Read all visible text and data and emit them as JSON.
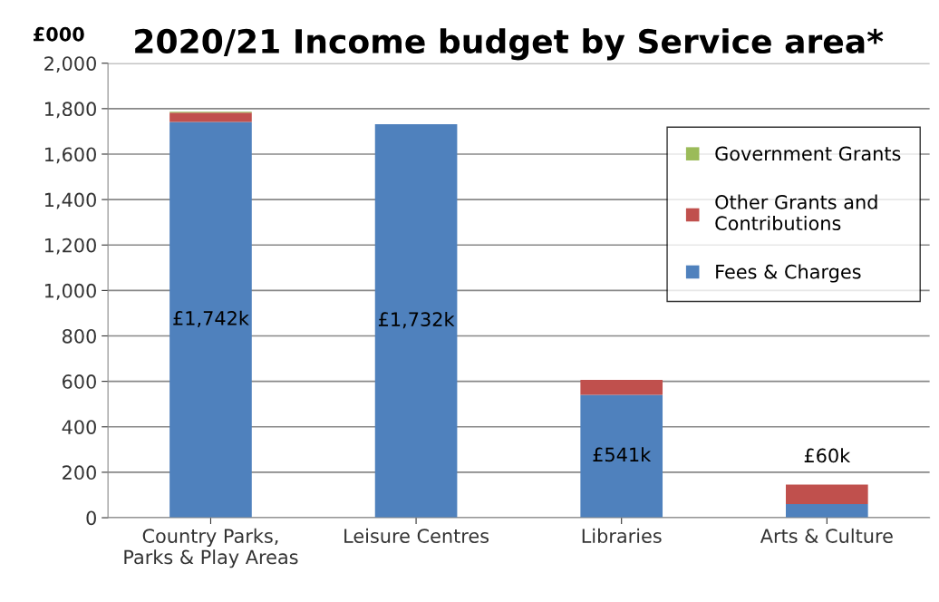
{
  "chart_data": {
    "type": "bar",
    "title": "2020/21 Income budget by Service area*",
    "ylabel": "£000",
    "stacked": true,
    "categories": [
      "Country Parks,\nParks & Play Areas",
      "Leisure Centres",
      "Libraries",
      "Arts & Culture"
    ],
    "series": [
      {
        "name": "Fees & Charges",
        "color": "#4f81bd",
        "values": [
          1742,
          1732,
          541,
          60
        ],
        "value_labels": [
          "£1,742k",
          "£1,732k",
          "£541k",
          "£60k"
        ]
      },
      {
        "name": "Other Grants and\nContributions",
        "color": "#c0504d",
        "values": [
          40,
          0,
          66,
          86
        ]
      },
      {
        "name": "Government Grants",
        "color": "#9bbb59",
        "values": [
          4,
          0,
          0,
          0
        ]
      }
    ],
    "ylim": [
      0,
      2000
    ],
    "yticks": [
      0,
      200,
      400,
      600,
      800,
      {
        "value": 1000,
        "label": "1,000"
      },
      {
        "value": 1200,
        "label": "1,200"
      },
      {
        "value": 1400,
        "label": "1,400"
      },
      {
        "value": 1600,
        "label": "1,600"
      },
      {
        "value": 1800,
        "label": "1,800"
      },
      {
        "value": 2000,
        "label": "2,000"
      }
    ],
    "grid": "y",
    "legend": "right"
  }
}
